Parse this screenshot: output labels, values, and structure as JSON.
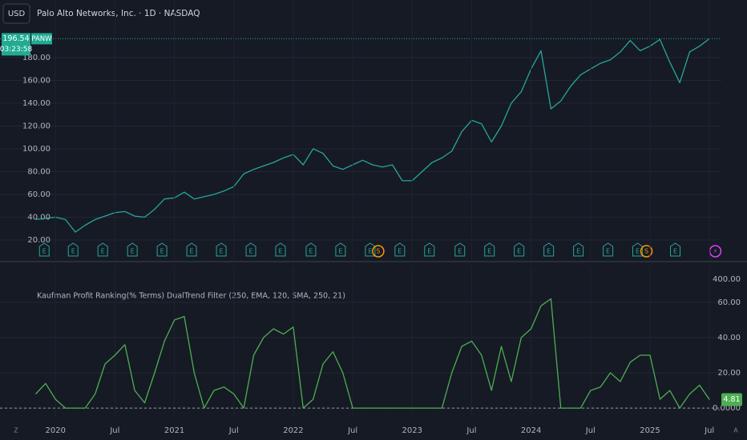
{
  "chart_data": [
    {
      "type": "line",
      "title": "Palo Alto Networks, Inc. · 1D · NASDAQ",
      "currency": "USD",
      "symbol": "PANW",
      "countdown": "03:23:58",
      "color": "#26a69a",
      "last_color": "#22ab94",
      "values": [
        38,
        39,
        40,
        38,
        27,
        33,
        38,
        41,
        44,
        45,
        41,
        40,
        47,
        56,
        57,
        62,
        56,
        58,
        60,
        63,
        67,
        78,
        82,
        85,
        88,
        92,
        95,
        86,
        100,
        96,
        85,
        82,
        86,
        90,
        86,
        84,
        86,
        72,
        72,
        80,
        88,
        92,
        98,
        115,
        125,
        122,
        106,
        120,
        140,
        150,
        170,
        186,
        135,
        142,
        155,
        165,
        170,
        175,
        178,
        185,
        195,
        186,
        190,
        196,
        176,
        158,
        185,
        190,
        196.54
      ],
      "xlim": [
        -3.6,
        69.2
      ],
      "ylim": [
        2.5,
        230.5
      ],
      "yticks": [
        {
          "value": 20,
          "label": "20.00"
        },
        {
          "value": 40,
          "label": "40.00"
        },
        {
          "value": 60,
          "label": "60.00"
        },
        {
          "value": 80,
          "label": "80.00"
        },
        {
          "value": 100,
          "label": "100.00"
        },
        {
          "value": 120,
          "label": "120.00"
        },
        {
          "value": 140,
          "label": "140.00"
        },
        {
          "value": 160,
          "label": "160.00"
        },
        {
          "value": 180,
          "label": "180.00"
        }
      ],
      "grid": true,
      "events": [
        {
          "label": "E",
          "x": 0.87
        },
        {
          "label": "E",
          "x": 3.78
        },
        {
          "label": "E",
          "x": 6.77
        },
        {
          "label": "E",
          "x": 9.76
        },
        {
          "label": "E",
          "x": 12.75
        },
        {
          "label": "E",
          "x": 15.74
        },
        {
          "label": "E",
          "x": 18.73
        },
        {
          "label": "E",
          "x": 21.72
        },
        {
          "label": "E",
          "x": 24.71
        },
        {
          "label": "E",
          "x": 27.78
        },
        {
          "label": "E",
          "x": 30.77
        },
        {
          "label": "E",
          "x": 33.76
        },
        {
          "label": "S",
          "x": 34.57
        },
        {
          "label": "E",
          "x": 36.75
        },
        {
          "label": "E",
          "x": 39.74
        },
        {
          "label": "E",
          "x": 42.81
        },
        {
          "label": "E",
          "x": 45.8
        },
        {
          "label": "E",
          "x": 48.79
        },
        {
          "label": "E",
          "x": 51.78
        },
        {
          "label": "E",
          "x": 54.77
        },
        {
          "label": "E",
          "x": 57.76
        },
        {
          "label": "E",
          "x": 60.75
        },
        {
          "label": "S",
          "x": 61.64
        },
        {
          "label": "E",
          "x": 64.55
        },
        {
          "label": "⚡",
          "x": 68.59
        }
      ]
    },
    {
      "type": "line",
      "title": "Kaufman Profit Ranking(% Terms) DualTrend Filter (250, EMA, 120, SMA, 250, 21)",
      "color": "#4caf50",
      "values": [
        8,
        14,
        5,
        0,
        0,
        0,
        8,
        25,
        30,
        36,
        10,
        3,
        20,
        38,
        50,
        52,
        20,
        0,
        10,
        12,
        8,
        0,
        30,
        40,
        45,
        42,
        46,
        0,
        5,
        25,
        32,
        20,
        0,
        0,
        0,
        0,
        0,
        0,
        0,
        0,
        0,
        0,
        20,
        35,
        38,
        30,
        10,
        35,
        15,
        40,
        45,
        58,
        62,
        0,
        0,
        0,
        10,
        12,
        20,
        15,
        26,
        30,
        30,
        5,
        10,
        0,
        8,
        13,
        4.81
      ],
      "xlim": [
        -3.6,
        69.2
      ],
      "ylim": [
        -4.5,
        80.4
      ],
      "yticks": [
        {
          "value": 0,
          "label": "0.0000"
        },
        {
          "value": 20,
          "label": "20.00"
        },
        {
          "value": 40,
          "label": "40.00"
        },
        {
          "value": 60,
          "label": "60.00"
        }
      ],
      "scale_top_label": "400.00",
      "xticks": [
        {
          "value": 2,
          "label": "2020"
        },
        {
          "value": 8,
          "label": "Jul"
        },
        {
          "value": 14,
          "label": "2021"
        },
        {
          "value": 20,
          "label": "Jul"
        },
        {
          "value": 26,
          "label": "2022"
        },
        {
          "value": 32,
          "label": "Jul"
        },
        {
          "value": 38,
          "label": "2023"
        },
        {
          "value": 44,
          "label": "Jul"
        },
        {
          "value": 50,
          "label": "2024"
        },
        {
          "value": 56,
          "label": "Jul"
        },
        {
          "value": 62,
          "label": "2025"
        },
        {
          "value": 68,
          "label": "Jul"
        }
      ],
      "grid": true
    }
  ],
  "controls": [
    "Z",
    "A"
  ]
}
